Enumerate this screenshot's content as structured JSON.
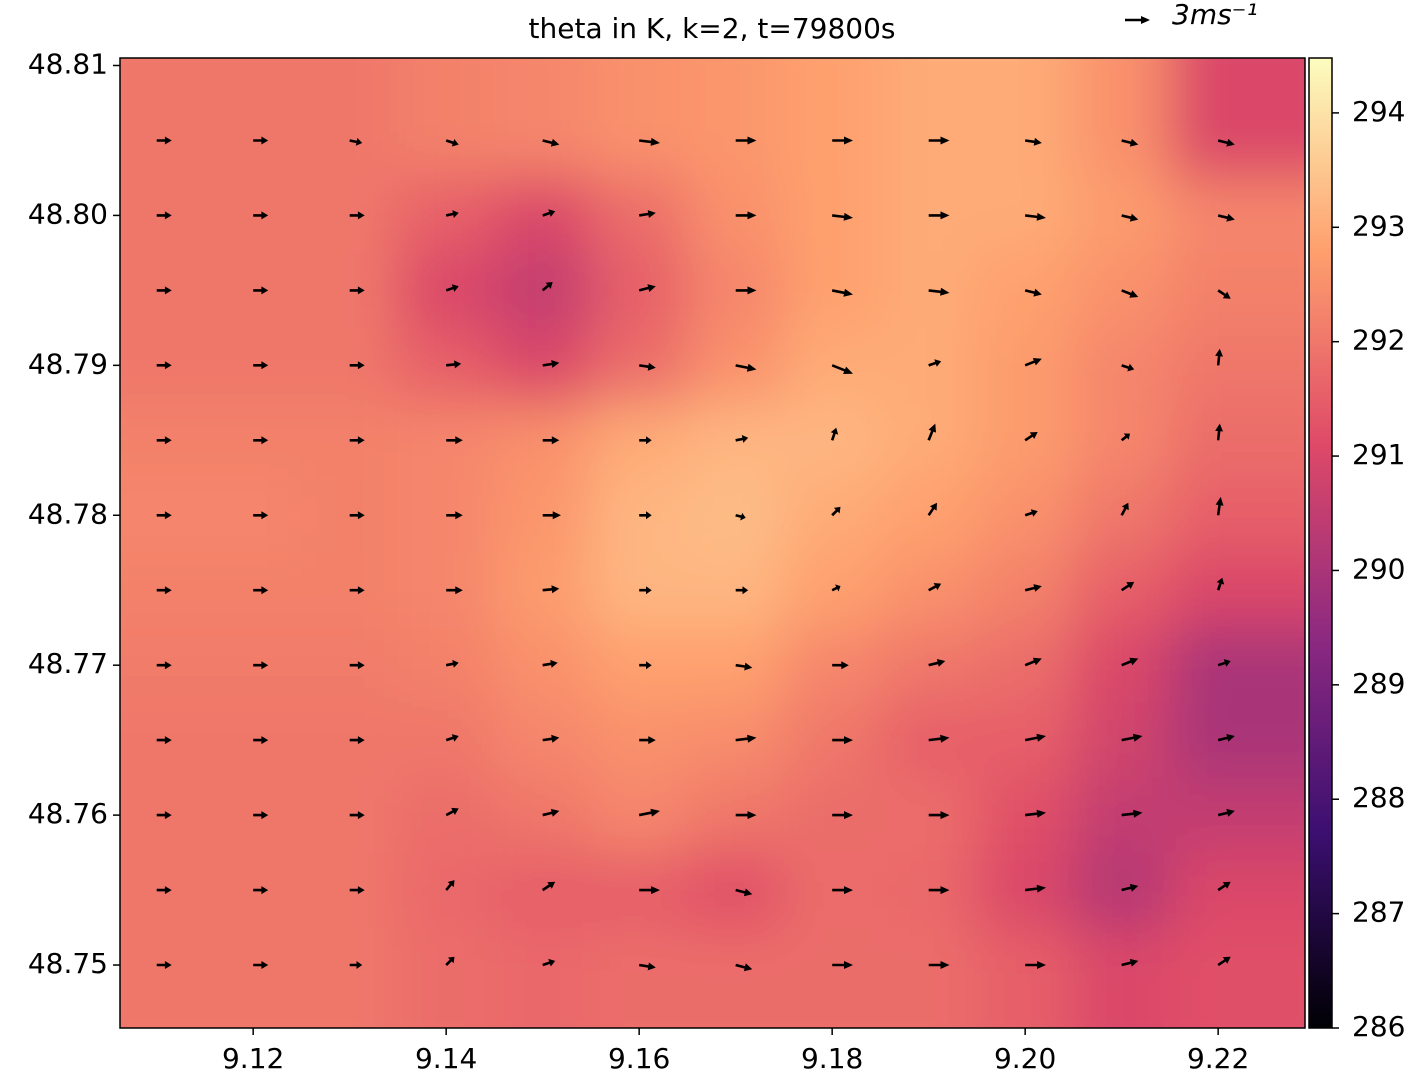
{
  "chart_data": {
    "type": "quiver-heatmap",
    "title": "theta in K, k=2, t=79800s",
    "x": [
      9.11,
      9.12,
      9.13,
      9.14,
      9.15,
      9.16,
      9.17,
      9.18,
      9.19,
      9.2,
      9.21,
      9.22
    ],
    "y": [
      48.805,
      48.8,
      48.795,
      48.79,
      48.785,
      48.78,
      48.775,
      48.77,
      48.765,
      48.76,
      48.755,
      48.75
    ],
    "theta": [
      [
        292,
        292,
        292,
        292.2,
        292.3,
        292.5,
        292.6,
        292.8,
        293,
        293,
        292.5,
        291
      ],
      [
        292,
        292,
        292,
        291.5,
        291,
        291.8,
        292.5,
        292.8,
        293,
        293,
        292.7,
        292.3
      ],
      [
        292,
        292,
        292,
        291,
        290.5,
        291.5,
        292.3,
        292.8,
        293,
        292.8,
        292.5,
        292.2
      ],
      [
        292,
        292,
        292,
        291.5,
        291,
        291.8,
        292.5,
        293,
        293,
        292.7,
        292.3,
        292
      ],
      [
        292.2,
        292.2,
        292.2,
        292.3,
        292.5,
        293,
        293.2,
        293.2,
        293,
        292.7,
        292.3,
        291.8
      ],
      [
        292.3,
        292.3,
        292.2,
        292.3,
        292.6,
        293.2,
        293.3,
        293,
        292.8,
        292.5,
        292,
        291.5
      ],
      [
        292.2,
        292.2,
        292.2,
        292.3,
        292.7,
        293.2,
        293.2,
        292.8,
        292.5,
        292.2,
        291.5,
        291
      ],
      [
        292.1,
        292.1,
        292.1,
        292.2,
        292.5,
        292.8,
        292.8,
        292.3,
        292,
        291.8,
        291,
        290
      ],
      [
        292,
        292,
        292,
        292,
        292.3,
        292.5,
        292.4,
        292,
        291.5,
        291.5,
        290.8,
        290
      ],
      [
        292,
        292,
        292,
        291.8,
        292,
        292.3,
        292,
        291.8,
        291.8,
        291.2,
        290.5,
        290.5
      ],
      [
        292,
        292,
        292,
        291.7,
        291.5,
        291.5,
        291.2,
        291.8,
        291.7,
        291,
        290.2,
        291
      ],
      [
        292,
        292,
        292,
        291.8,
        291.7,
        291.8,
        291.8,
        291.8,
        291.8,
        291.5,
        291,
        291.2
      ]
    ],
    "u": [
      [
        1.8,
        1.8,
        1.5,
        1.5,
        2,
        2.5,
        2.5,
        2.5,
        2.5,
        2,
        2,
        2
      ],
      [
        1.8,
        1.8,
        1.8,
        1.5,
        1.5,
        2,
        2.5,
        2.5,
        2.5,
        2.5,
        2,
        2
      ],
      [
        1.8,
        1.8,
        1.8,
        1.5,
        1.2,
        2,
        2.5,
        2.5,
        2.5,
        2,
        2,
        1.5
      ],
      [
        1.8,
        1.8,
        1.8,
        1.8,
        2,
        2,
        2.5,
        2.5,
        1.5,
        2,
        1.5,
        0.2
      ],
      [
        1.8,
        1.8,
        1.8,
        2,
        2,
        1.5,
        1.5,
        0.5,
        0.8,
        1.5,
        1,
        0.2
      ],
      [
        1.8,
        1.8,
        1.8,
        2,
        2.2,
        1.5,
        1.2,
        1,
        1,
        1.5,
        0.8,
        0.3
      ],
      [
        1.8,
        1.8,
        1.8,
        2,
        2,
        1.5,
        1.5,
        1,
        1.5,
        2,
        1.5,
        0.5
      ],
      [
        1.8,
        1.8,
        1.8,
        1.5,
        1.8,
        1.5,
        2,
        2,
        2,
        2,
        2,
        1.5
      ],
      [
        1.8,
        1.8,
        1.8,
        1.5,
        2,
        2,
        2.5,
        2.5,
        2.5,
        2.5,
        2.5,
        2
      ],
      [
        1.8,
        1.8,
        1.8,
        1.5,
        2,
        2.5,
        2.5,
        2.5,
        2.5,
        2.5,
        2.5,
        2
      ],
      [
        1.8,
        1.8,
        1.8,
        1,
        1.5,
        2.5,
        2,
        2.5,
        2.5,
        2.5,
        2,
        1.5
      ],
      [
        1.8,
        1.8,
        1.5,
        1,
        1.5,
        2,
        2,
        2.5,
        2.5,
        2.5,
        2,
        1.5
      ]
    ],
    "v": [
      [
        0,
        0,
        -0.3,
        -0.5,
        -0.5,
        -0.3,
        0,
        0,
        0,
        -0.3,
        -0.5,
        -0.5
      ],
      [
        0,
        0,
        0,
        0.3,
        0.5,
        0.3,
        0,
        -0.3,
        0,
        -0.3,
        -0.5,
        -0.5
      ],
      [
        0,
        0,
        0,
        0.5,
        1,
        0.5,
        0,
        -0.5,
        -0.3,
        -0.5,
        -0.8,
        -1
      ],
      [
        0,
        0,
        0,
        0.2,
        0.3,
        -0.3,
        -0.5,
        -1,
        0.5,
        0.8,
        -0.5,
        2
      ],
      [
        0,
        0,
        0,
        0,
        0,
        0,
        0.3,
        1.5,
        2,
        1,
        0.8,
        2
      ],
      [
        0,
        0,
        0,
        0,
        0,
        0,
        -0.3,
        1,
        1.5,
        0.5,
        1.5,
        2.2
      ],
      [
        0,
        0,
        0,
        0,
        0.2,
        0,
        0,
        0.5,
        0.8,
        0.5,
        1,
        1.5
      ],
      [
        0,
        0,
        0,
        0.3,
        0.3,
        0,
        -0.3,
        0,
        0.5,
        0.8,
        0.8,
        0.5
      ],
      [
        0,
        0,
        0,
        0.5,
        0.3,
        0,
        0.3,
        0,
        0.3,
        0.5,
        0.5,
        0.5
      ],
      [
        0,
        0,
        0,
        0.8,
        0.5,
        0.5,
        0,
        0,
        0,
        0.3,
        0.3,
        0.5
      ],
      [
        0,
        0,
        0,
        1.2,
        1,
        0,
        -0.5,
        0,
        0,
        0.3,
        0.5,
        1
      ],
      [
        0,
        0,
        0,
        1,
        0.5,
        -0.3,
        -0.5,
        0,
        0,
        0,
        0.5,
        1
      ]
    ],
    "key": {
      "u": 3,
      "label": "3ms⁻¹"
    },
    "arrow_color": "#000000",
    "colormap": [
      "#000004",
      "#3b0f70",
      "#8c2981",
      "#de4968",
      "#fe9f6d",
      "#fcfdbf"
    ],
    "xlim": [
      9.1062,
      9.229
    ],
    "ylim": [
      48.7458,
      48.8105
    ],
    "clim": [
      286,
      294.48
    ],
    "xticks": [
      9.12,
      9.14,
      9.16,
      9.18,
      {
        "value": 9.2,
        "label": "9.20"
      },
      9.22
    ],
    "yticks": [
      48.75,
      48.76,
      48.77,
      48.78,
      48.79,
      {
        "value": 48.8,
        "label": "48.80"
      },
      48.81
    ],
    "cticks": [
      286,
      287,
      288,
      289,
      290,
      291,
      292,
      293,
      294
    ]
  }
}
